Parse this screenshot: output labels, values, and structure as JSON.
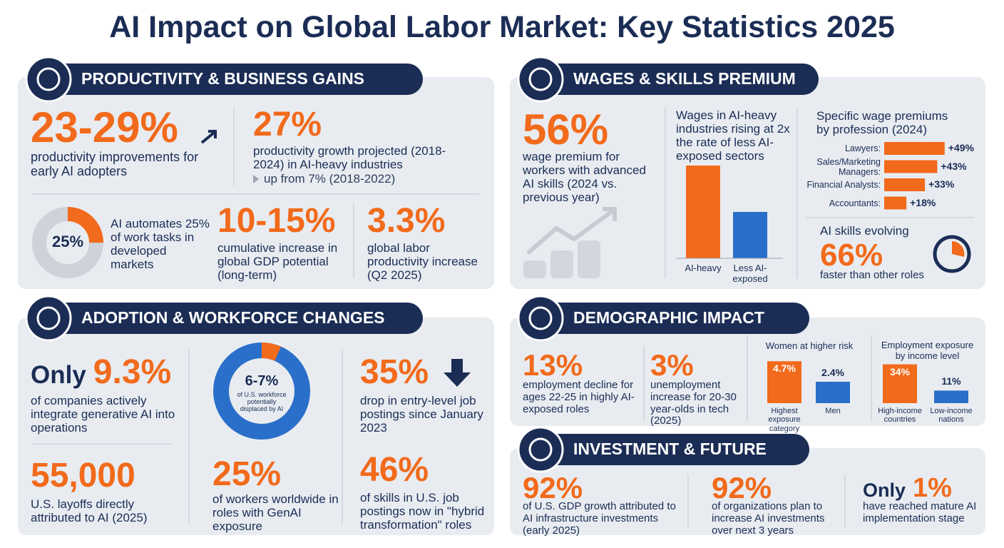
{
  "title": "AI Impact on Global Labor Market: Key Statistics 2025",
  "productivity": {
    "heading": "PRODUCTIVITY & BUSINESS GAINS",
    "stat1": {
      "value": "23-29%",
      "text": "productivity improvements for early AI adopters"
    },
    "stat2": {
      "value": "27%",
      "text": "productivity growth projected (2018-2024) in AI-heavy industries",
      "note": "up from 7% (2018-2022)"
    },
    "donut": {
      "value": 25,
      "label": "25%",
      "color": "#f26a1b",
      "text": "AI automates 25% of work tasks in developed markets"
    },
    "stat3": {
      "value": "10-15%",
      "text": "cumulative increase in global GDP potential (long-term)"
    },
    "stat4": {
      "value": "3.3%",
      "text": "global labor productivity increase (Q2 2025)"
    }
  },
  "wages": {
    "heading": "WAGES & SKILLS PREMIUM",
    "stat1": {
      "value": "56%",
      "text": "wage premium for workers with advanced AI skills (2024 vs. previous year)"
    },
    "growth_chart": {
      "title": "Wages in AI-heavy industries rising at 2x the rate of less AI-exposed sectors",
      "bars": [
        {
          "label": "AI-heavy",
          "value": 2,
          "color": "#f26a1b"
        },
        {
          "label": "Less AI-exposed",
          "value": 1,
          "color": "#2a6fc9"
        }
      ]
    },
    "premiums": {
      "title": "Specific wage premiums by profession (2024)",
      "bars": [
        {
          "label": "Lawyers:",
          "value": 49,
          "value_label": "+49%",
          "color": "#f26a1b"
        },
        {
          "label": "Sales/Marketing Managers:",
          "value": 43,
          "value_label": "+43%",
          "color": "#f26a1b"
        },
        {
          "label": "Financial Analysts:",
          "value": 33,
          "value_label": "+33%",
          "color": "#f26a1b"
        },
        {
          "label": "Accountants:",
          "value": 18,
          "value_label": "+18%",
          "color": "#f26a1b"
        }
      ]
    },
    "skills": {
      "lead": "AI skills evolving",
      "value": "66%",
      "text": "faster than other roles"
    }
  },
  "adoption": {
    "heading": "ADOPTION & WORKFORCE CHANGES",
    "stat1": {
      "prefix": "Only",
      "value": "9.3%",
      "text": "of companies actively integrate generative AI into operations"
    },
    "stat2": {
      "value": "55,000",
      "text": "U.S. layoffs directly attributed to AI (2025)"
    },
    "donut": {
      "value": 6.5,
      "label": "6-7%",
      "color": "#f26a1b",
      "text": "of U.S. workforce potentially displaced by AI"
    },
    "stat3": {
      "value": "25%",
      "text": "of workers worldwide in roles with GenAI exposure"
    },
    "stat4": {
      "value": "35%",
      "text": "drop in entry-level job postings since January 2023"
    },
    "stat5": {
      "value": "46%",
      "text": "of skills in U.S. job postings now in \"hybrid transformation\" roles"
    }
  },
  "demographic": {
    "heading": "DEMOGRAPHIC IMPACT",
    "stat1": {
      "value": "13%",
      "text": "employment decline for ages 22-25 in highly AI-exposed roles"
    },
    "stat2": {
      "value": "3%",
      "text": "unemployment increase for 20-30 year-olds in tech (2025)"
    },
    "women_chart": {
      "title": "Women at higher risk",
      "bars": [
        {
          "label": "Highest exposure category",
          "value": 4.7,
          "value_label": "4.7%",
          "color": "#f26a1b"
        },
        {
          "label": "Men",
          "value": 2.4,
          "value_label": "2.4%",
          "color": "#2a6fc9"
        }
      ]
    },
    "income_chart": {
      "title": "Employment exposure by income level",
      "bars": [
        {
          "label": "High-income countries",
          "value": 34,
          "value_label": "34%",
          "color": "#f26a1b"
        },
        {
          "label": "Low-income nations",
          "value": 11,
          "value_label": "11%",
          "color": "#2a6fc9"
        }
      ]
    }
  },
  "investment": {
    "heading": "INVESTMENT & FUTURE",
    "stat1": {
      "value": "92%",
      "text": "of U.S. GDP growth attributed to AI infrastructure investments (early 2025)"
    },
    "stat2": {
      "value": "92%",
      "text": "of organizations plan to increase AI investments over next 3 years"
    },
    "stat3": {
      "prefix": "Only",
      "value": "1%",
      "text": "have reached mature AI implementation stage"
    }
  }
}
